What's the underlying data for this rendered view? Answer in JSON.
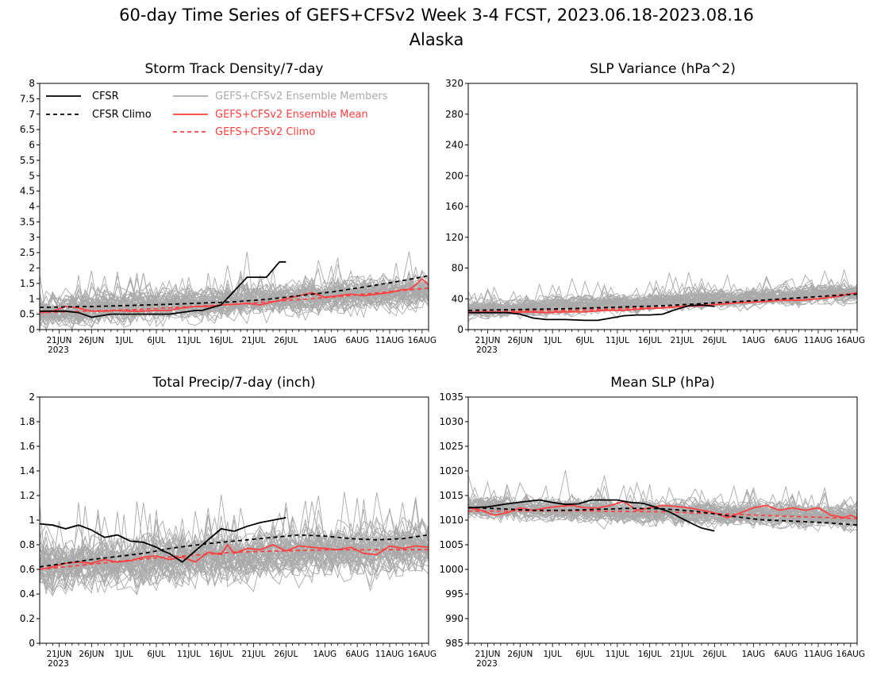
{
  "page": {
    "title": "60-day Time Series of GEFS+CFSv2 Week 3-4 FCST, 2023.06.18-2023.08.16",
    "subtitle": "Alaska"
  },
  "colors": {
    "ensemble_members": "#aaaaaa",
    "ensemble_mean": "#ff4040",
    "cfsr": "#000000"
  },
  "legend": {
    "cfsr": "CFSR",
    "cfsr_climo": "CFSR Climo",
    "members": "GEFS+CFSv2 Ensemble Members",
    "mean": "GEFS+CFSv2 Ensemble Mean",
    "climo": "GEFS+CFSv2 Climo"
  },
  "x_axis": {
    "days": 60,
    "tick_labels": [
      "21JUN",
      "26JUN",
      "1JUL",
      "6JUL",
      "11JUL",
      "16JUL",
      "21JUL",
      "26JUL",
      "1AUG",
      "6AUG",
      "11AUG",
      "16AUG"
    ],
    "tick_days": [
      3,
      8,
      13,
      18,
      23,
      28,
      33,
      38,
      44,
      49,
      54,
      59
    ],
    "year_label": "2023",
    "day0_date": "2023-06-18"
  },
  "chart_data": [
    {
      "id": "storm",
      "type": "line",
      "title": "Storm Track Density/7-day",
      "ylim": [
        0,
        8
      ],
      "yticks": [
        0,
        0.5,
        1,
        1.5,
        2,
        2.5,
        3,
        3.5,
        4,
        4.5,
        5,
        5.5,
        6,
        6.5,
        7,
        7.5,
        8
      ],
      "ytick_labels": [
        "0",
        "0.5",
        "1",
        "1.5",
        "2",
        "2.5",
        "3",
        "3.5",
        "4",
        "4.5",
        "5",
        "5.5",
        "6",
        "6.5",
        "7",
        "7.5",
        "8"
      ],
      "members_note": "50 gray ensemble member traces, values ~0.1-4.0",
      "members_base": [
        0.6,
        1.25
      ],
      "members_spread": 0.75,
      "members_min": 0,
      "series": [
        {
          "name": "CFSR",
          "style": "solid",
          "color": "#000000",
          "x": [
            0,
            4,
            6,
            8,
            11,
            16,
            20,
            24,
            25,
            26,
            28,
            30,
            32,
            34,
            35,
            36,
            37,
            38
          ],
          "y": [
            0.6,
            0.6,
            0.55,
            0.4,
            0.5,
            0.5,
            0.5,
            0.62,
            0.62,
            0.68,
            0.8,
            1.25,
            1.7,
            1.7,
            1.7,
            1.95,
            2.2,
            2.2
          ]
        },
        {
          "name": "CFSR Climo",
          "style": "dashed",
          "color": "#000000",
          "x": [
            0,
            10,
            20,
            30,
            35,
            40,
            45,
            50,
            55,
            60
          ],
          "y": [
            0.72,
            0.76,
            0.82,
            0.9,
            0.98,
            1.1,
            1.22,
            1.38,
            1.55,
            1.75
          ]
        },
        {
          "name": "GEFS+CFSv2 Ensemble Mean",
          "style": "solid",
          "color": "#ff4040",
          "x": [
            0,
            2,
            4,
            6,
            8,
            10,
            12,
            14,
            16,
            18,
            20,
            22,
            24,
            26,
            28,
            30,
            32,
            34,
            36,
            38,
            40,
            42,
            44,
            46,
            48,
            50,
            52,
            54,
            56,
            57,
            58,
            59,
            60
          ],
          "y": [
            0.55,
            0.6,
            0.75,
            0.7,
            0.6,
            0.6,
            0.62,
            0.6,
            0.6,
            0.62,
            0.62,
            0.7,
            0.75,
            0.75,
            0.8,
            0.82,
            0.85,
            0.8,
            0.9,
            1.0,
            1.1,
            1.2,
            1.05,
            1.1,
            1.15,
            1.1,
            1.15,
            1.2,
            1.3,
            1.3,
            1.45,
            1.65,
            1.45
          ]
        },
        {
          "name": "GEFS+CFSv2 Climo",
          "style": "dashed",
          "color": "#ff4040",
          "x": [
            0,
            15,
            30,
            45,
            60
          ],
          "y": [
            0.55,
            0.65,
            0.82,
            1.05,
            1.35
          ]
        }
      ]
    },
    {
      "id": "slpvar",
      "type": "line",
      "title": "SLP Variance (hPa^2)",
      "ylim": [
        0,
        320
      ],
      "yticks": [
        0,
        40,
        80,
        120,
        160,
        200,
        240,
        280,
        320
      ],
      "ytick_labels": [
        "0",
        "40",
        "80",
        "120",
        "160",
        "200",
        "240",
        "280",
        "320"
      ],
      "members_note": "50 gray ensemble member traces, values ~10-125",
      "members_base": [
        25,
        48
      ],
      "members_spread": 16,
      "members_min": 8,
      "series": [
        {
          "name": "CFSR",
          "style": "solid",
          "color": "#000000",
          "x": [
            0,
            3,
            6,
            8,
            10,
            12,
            15,
            18,
            20,
            22,
            24,
            26,
            28,
            30,
            32,
            34,
            36,
            38
          ],
          "y": [
            22,
            22,
            22,
            20,
            15,
            13,
            13,
            12,
            12,
            15,
            18,
            19,
            19,
            20,
            26,
            31,
            32,
            30
          ]
        },
        {
          "name": "CFSR Climo",
          "style": "dashed",
          "color": "#000000",
          "x": [
            0,
            15,
            30,
            45,
            60
          ],
          "y": [
            25,
            27,
            31,
            38,
            46
          ]
        },
        {
          "name": "GEFS+CFSv2 Ensemble Mean",
          "style": "solid",
          "color": "#ff4040",
          "x": [
            0,
            3,
            6,
            9,
            12,
            15,
            18,
            21,
            24,
            27,
            30,
            33,
            36,
            39,
            42,
            45,
            48,
            51,
            54,
            57,
            60
          ],
          "y": [
            22,
            23,
            22,
            23,
            22,
            23,
            23,
            25,
            25,
            27,
            28,
            30,
            31,
            33,
            35,
            36,
            38,
            38,
            40,
            43,
            48
          ]
        },
        {
          "name": "GEFS+CFSv2 Climo",
          "style": "dashed",
          "color": "#ff4040",
          "x": [
            0,
            15,
            30,
            45,
            60
          ],
          "y": [
            23,
            25,
            29,
            37,
            47
          ]
        }
      ]
    },
    {
      "id": "precip",
      "type": "line",
      "title": "Total Precip/7-day (inch)",
      "ylim": [
        0,
        2
      ],
      "yticks": [
        0,
        0.2,
        0.4,
        0.6,
        0.8,
        1,
        1.2,
        1.4,
        1.6,
        1.8,
        2
      ],
      "ytick_labels": [
        "0",
        "0.2",
        "0.4",
        "0.6",
        "0.8",
        "1",
        "1.2",
        "1.4",
        "1.6",
        "1.8",
        "2"
      ],
      "members_note": "50 gray ensemble member traces, values ~0.25-1.65",
      "members_base": [
        0.62,
        0.78
      ],
      "members_spread": 0.28,
      "members_min": 0.2,
      "series": [
        {
          "name": "CFSR",
          "style": "solid",
          "color": "#000000",
          "x": [
            0,
            2,
            4,
            6,
            8,
            10,
            12,
            14,
            16,
            18,
            19,
            20,
            22,
            24,
            26,
            28,
            30,
            32,
            34,
            36,
            38
          ],
          "y": [
            0.97,
            0.96,
            0.93,
            0.96,
            0.92,
            0.86,
            0.88,
            0.83,
            0.82,
            0.78,
            0.75,
            0.73,
            0.66,
            0.75,
            0.84,
            0.93,
            0.91,
            0.95,
            0.98,
            1.0,
            1.02
          ]
        },
        {
          "name": "CFSR Climo",
          "style": "dashed",
          "color": "#000000",
          "x": [
            0,
            8,
            16,
            20,
            26,
            32,
            36,
            40,
            44,
            48,
            52,
            56,
            60
          ],
          "y": [
            0.62,
            0.68,
            0.73,
            0.77,
            0.81,
            0.84,
            0.86,
            0.88,
            0.87,
            0.85,
            0.84,
            0.85,
            0.88
          ]
        },
        {
          "name": "GEFS+CFSv2 Ensemble Mean",
          "style": "solid",
          "color": "#ff4040",
          "x": [
            0,
            2,
            4,
            6,
            8,
            10,
            12,
            14,
            16,
            18,
            20,
            22,
            24,
            26,
            28,
            29,
            30,
            32,
            34,
            36,
            38,
            40,
            42,
            44,
            46,
            48,
            50,
            52,
            54,
            56,
            58,
            60
          ],
          "y": [
            0.6,
            0.62,
            0.65,
            0.66,
            0.65,
            0.68,
            0.66,
            0.67,
            0.7,
            0.71,
            0.68,
            0.7,
            0.66,
            0.74,
            0.72,
            0.8,
            0.73,
            0.77,
            0.76,
            0.8,
            0.75,
            0.79,
            0.78,
            0.77,
            0.76,
            0.78,
            0.73,
            0.72,
            0.79,
            0.77,
            0.79,
            0.78
          ]
        },
        {
          "name": "GEFS+CFSv2 Climo",
          "style": "dashed",
          "color": "#ff4040",
          "x": [
            0,
            15,
            30,
            45,
            60
          ],
          "y": [
            0.6,
            0.68,
            0.74,
            0.76,
            0.76
          ]
        }
      ]
    },
    {
      "id": "mslp",
      "type": "line",
      "title": "Mean SLP (hPa)",
      "ylim": [
        985,
        1035
      ],
      "yticks": [
        985,
        990,
        995,
        1000,
        1005,
        1010,
        1015,
        1020,
        1025,
        1030,
        1035
      ],
      "ytick_labels": [
        "985",
        "990",
        "995",
        "1000",
        "1005",
        "1010",
        "1015",
        "1020",
        "1025",
        "1030",
        "1035"
      ],
      "members_note": "50 gray ensemble member traces, values ~1001-1021",
      "members_base": [
        1012.5,
        1010.5
      ],
      "members_spread": 3.2,
      "members_min": 1000,
      "series": [
        {
          "name": "CFSR",
          "style": "solid",
          "color": "#000000",
          "x": [
            0,
            3,
            6,
            9,
            11,
            13,
            15,
            17,
            19,
            21,
            23,
            25,
            27,
            29,
            31,
            33,
            35,
            36,
            38
          ],
          "y": [
            1012.5,
            1012.7,
            1013.3,
            1013.8,
            1014.1,
            1013.6,
            1013.2,
            1013.3,
            1014.1,
            1014.1,
            1014.1,
            1013.6,
            1013.4,
            1012.6,
            1011.7,
            1010.3,
            1009.0,
            1008.4,
            1007.8
          ]
        },
        {
          "name": "CFSR Climo",
          "style": "dashed",
          "color": "#000000",
          "x": [
            0,
            5,
            10,
            15,
            20,
            25,
            30,
            35,
            40,
            45,
            50,
            55,
            60
          ],
          "y": [
            1012.6,
            1012.3,
            1012.0,
            1012.0,
            1012.2,
            1012.4,
            1012.3,
            1011.8,
            1010.9,
            1010.1,
            1009.8,
            1009.5,
            1009.0
          ]
        },
        {
          "name": "GEFS+CFSv2 Ensemble Mean",
          "style": "solid",
          "color": "#ff4040",
          "x": [
            0,
            2,
            4,
            6,
            8,
            10,
            12,
            14,
            16,
            18,
            20,
            22,
            24,
            26,
            28,
            30,
            32,
            34,
            36,
            38,
            40,
            42,
            44,
            46,
            48,
            50,
            52,
            54,
            56,
            58,
            59,
            60
          ],
          "y": [
            1012.5,
            1012.0,
            1011.0,
            1011.5,
            1012.5,
            1012.0,
            1012.5,
            1012.8,
            1013.0,
            1012.5,
            1012.5,
            1013.0,
            1013.8,
            1012.0,
            1012.5,
            1013.0,
            1012.8,
            1012.5,
            1012.0,
            1011.5,
            1010.5,
            1011.5,
            1012.5,
            1013.0,
            1012.0,
            1012.5,
            1012.0,
            1012.5,
            1011.0,
            1010.5,
            1011.0,
            1010.5
          ]
        },
        {
          "name": "GEFS+CFSv2 Climo",
          "style": "dashed",
          "color": "#ff4040",
          "x": [
            0,
            15,
            30,
            45,
            60
          ],
          "y": [
            1011.8,
            1011.9,
            1011.7,
            1011.0,
            1010.3
          ]
        }
      ]
    }
  ]
}
